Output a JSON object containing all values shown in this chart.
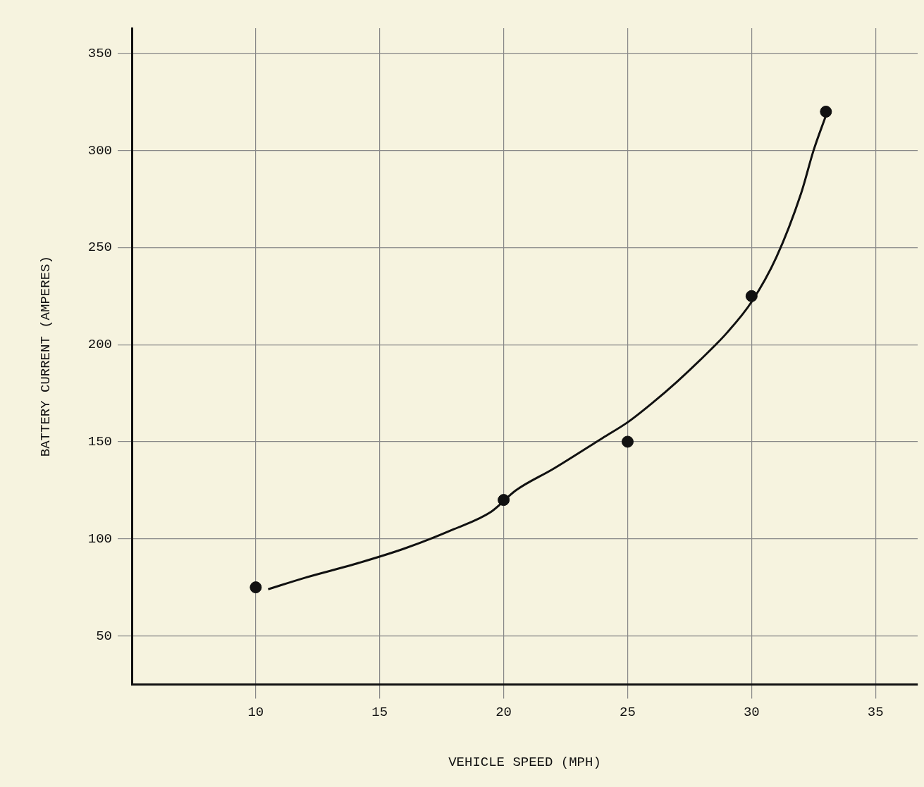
{
  "chart_data": {
    "type": "scatter",
    "xlabel": "VEHICLE SPEED (MPH)",
    "ylabel": "BATTERY CURRENT (AMPERES)",
    "xlim": [
      5,
      36.7
    ],
    "ylim": [
      25,
      363
    ],
    "xticks": [
      10,
      15,
      20,
      25,
      30,
      35
    ],
    "yticks": [
      50,
      100,
      150,
      200,
      250,
      300,
      350
    ],
    "grid": true,
    "series": [
      {
        "type": "line",
        "marker": "none",
        "color": "#111111",
        "x": [
          10.5,
          12,
          14,
          16,
          18,
          19.5,
          20.5,
          22,
          24,
          25,
          26,
          27,
          28,
          29,
          30,
          31,
          32,
          32.5,
          33
        ],
        "values": [
          74,
          80,
          87,
          95,
          105,
          114,
          125,
          136,
          152,
          160,
          170,
          181,
          193,
          206,
          222,
          245,
          278,
          300,
          318
        ]
      },
      {
        "type": "scatter",
        "marker": "circle",
        "color": "#111111",
        "x": [
          10,
          20,
          25,
          30,
          33
        ],
        "values": [
          75,
          120,
          150,
          225,
          320
        ]
      }
    ]
  }
}
